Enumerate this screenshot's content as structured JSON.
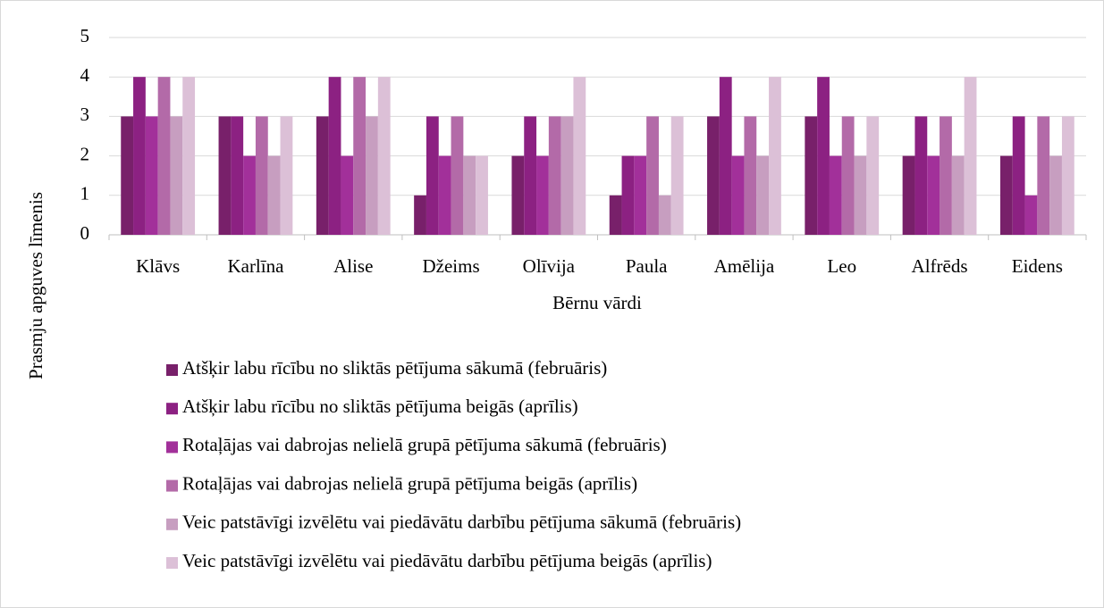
{
  "chart_data": {
    "type": "bar",
    "categories": [
      "Klāvs",
      "Karlīna",
      "Alise",
      "Džeims",
      "Olīvija",
      "Paula",
      "Amēlija",
      "Leo",
      "Alfrēds",
      "Eidens"
    ],
    "series": [
      {
        "name": "Atšķir labu rīcību no sliktās pētījuma sākumā (februāris)",
        "color": "#78206a",
        "values": [
          3,
          3,
          3,
          1,
          2,
          1,
          3,
          3,
          2,
          2
        ]
      },
      {
        "name": "Atšķir labu rīcību no sliktās pētījuma beigās (aprīlis)",
        "color": "#8c2182",
        "values": [
          4,
          3,
          4,
          3,
          3,
          2,
          4,
          4,
          3,
          3
        ]
      },
      {
        "name": "Rotaļājas vai dabrojas nelielā grupā pētījuma sākumā (februāris)",
        "color": "#a2309a",
        "values": [
          3,
          2,
          2,
          2,
          2,
          2,
          2,
          2,
          2,
          1
        ]
      },
      {
        "name": "Rotaļājas vai dabrojas nelielā grupā pētījuma beigās (aprīlis)",
        "color": "#b36aa8",
        "values": [
          4,
          3,
          4,
          3,
          3,
          3,
          3,
          3,
          3,
          3
        ]
      },
      {
        "name": "Veic patstāvīgi izvēlētu vai piedāvātu darbību pētījuma sākumā (februāris)",
        "color": "#c79ec0",
        "values": [
          3,
          2,
          3,
          2,
          3,
          1,
          2,
          2,
          2,
          2
        ]
      },
      {
        "name": "Veic patstāvīgi izvēlētu vai piedāvātu darbību pētījuma beigās (aprīlis)",
        "color": "#dcc0d7",
        "values": [
          4,
          3,
          4,
          2,
          4,
          3,
          4,
          3,
          4,
          3
        ]
      }
    ],
    "x_label": "Bērnu vārdi",
    "y_label": "Prasmju apguves līmenis",
    "ylim": [
      0,
      5
    ],
    "yticks": [
      0,
      1,
      2,
      3,
      4,
      5
    ],
    "grid": true,
    "legend": "bottom"
  }
}
